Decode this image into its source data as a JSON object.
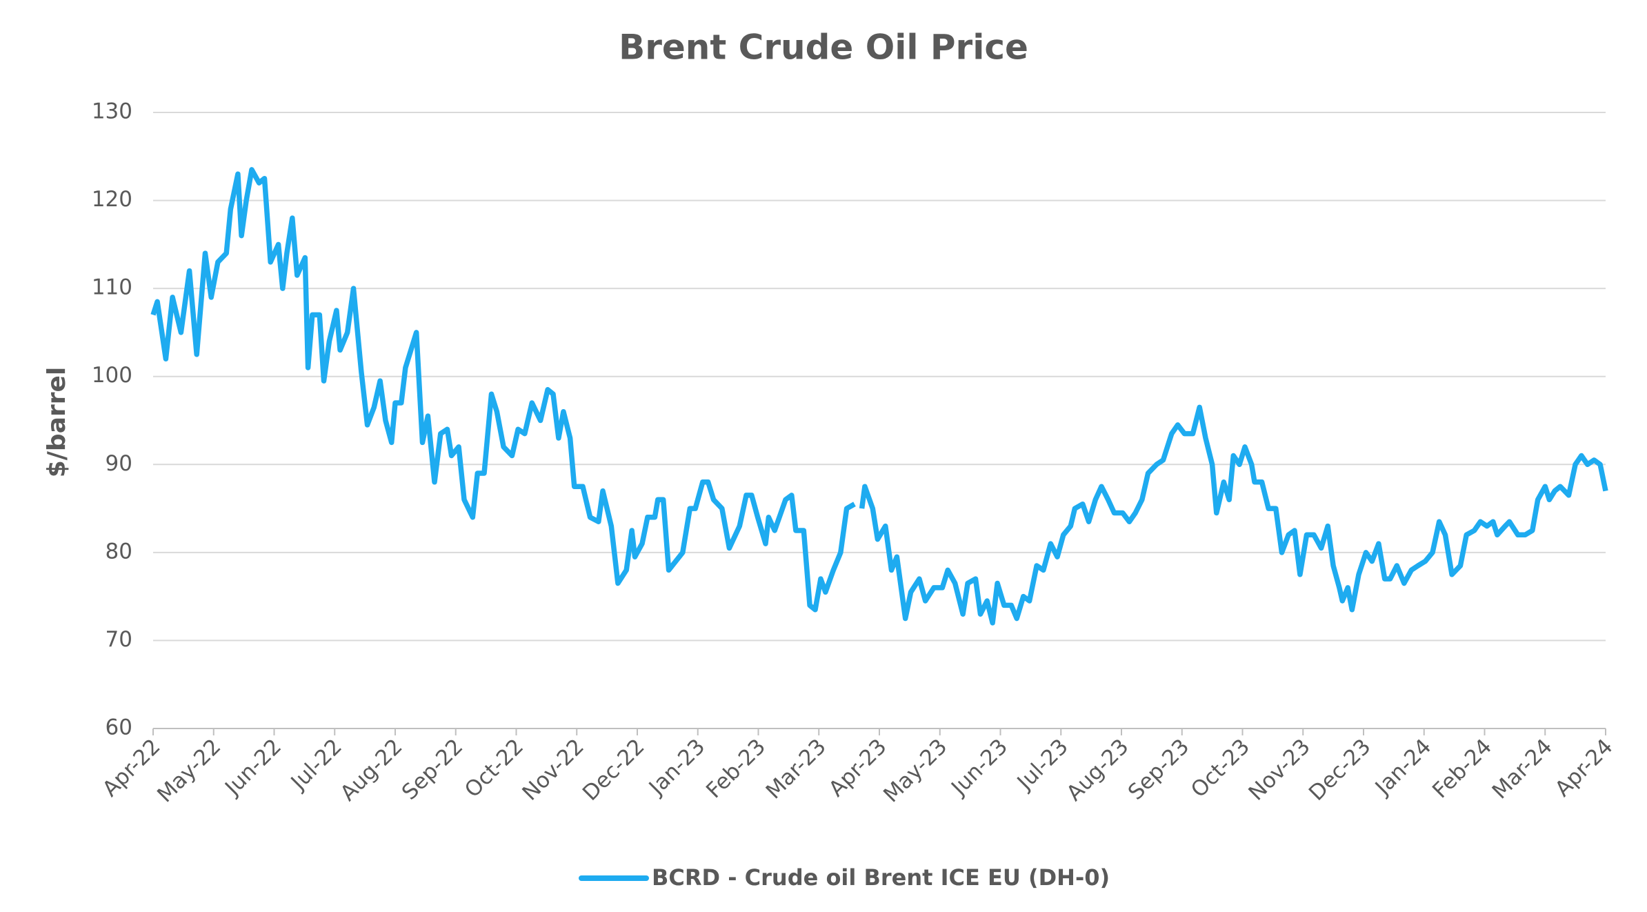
{
  "chart_data": {
    "type": "line",
    "title": "Brent Crude Oil Price",
    "ylabel": "$/barrel",
    "xlim": [
      0,
      24
    ],
    "xticks": [
      {
        "value": 0,
        "label": "Apr-22"
      },
      {
        "value": 1,
        "label": "May-22"
      },
      {
        "value": 2,
        "label": "Jun-22"
      },
      {
        "value": 3,
        "label": "Jul-22"
      },
      {
        "value": 4,
        "label": "Aug-22"
      },
      {
        "value": 5,
        "label": "Sep-22"
      },
      {
        "value": 6,
        "label": "Oct-22"
      },
      {
        "value": 7,
        "label": "Nov-22"
      },
      {
        "value": 8,
        "label": "Dec-22"
      },
      {
        "value": 9,
        "label": "Jan-23"
      },
      {
        "value": 10,
        "label": "Feb-23"
      },
      {
        "value": 11,
        "label": "Mar-23"
      },
      {
        "value": 12,
        "label": "Apr-23"
      },
      {
        "value": 13,
        "label": "May-23"
      },
      {
        "value": 14,
        "label": "Jun-23"
      },
      {
        "value": 15,
        "label": "Jul-23"
      },
      {
        "value": 16,
        "label": "Aug-23"
      },
      {
        "value": 17,
        "label": "Sep-23"
      },
      {
        "value": 18,
        "label": "Oct-23"
      },
      {
        "value": 19,
        "label": "Nov-23"
      },
      {
        "value": 20,
        "label": "Dec-23"
      },
      {
        "value": 21,
        "label": "Jan-24"
      },
      {
        "value": 22,
        "label": "Feb-24"
      },
      {
        "value": 23,
        "label": "Mar-24"
      },
      {
        "value": 24,
        "label": "Apr-24"
      }
    ],
    "ylim": [
      60,
      130
    ],
    "yticks": [
      60,
      70,
      80,
      90,
      100,
      110,
      120,
      130
    ],
    "grid": true,
    "series": [
      {
        "name": "BCRD - Crude oil Brent ICE EU (DH-0)",
        "color": "#1eabf0",
        "x": [
          0,
          0.07,
          0.21,
          0.32,
          0.46,
          0.6,
          0.72,
          0.86,
          0.96,
          1.07,
          1.21,
          1.28,
          1.4,
          1.46,
          1.54,
          1.63,
          1.75,
          1.84,
          1.94,
          2.07,
          2.14,
          2.21,
          2.3,
          2.38,
          2.51,
          2.56,
          2.63,
          2.75,
          2.82,
          2.91,
          3.03,
          3.09,
          3.21,
          3.31,
          3.44,
          3.54,
          3.65,
          3.75,
          3.84,
          3.94,
          4.0,
          4.1,
          4.17,
          4.35,
          4.45,
          4.54,
          4.65,
          4.75,
          4.86,
          4.93,
          5.05,
          5.14,
          5.28,
          5.36,
          5.47,
          5.59,
          5.68,
          5.79,
          5.93,
          6.03,
          6.14,
          6.26,
          6.4,
          6.52,
          6.61,
          6.7,
          6.78,
          6.89,
          6.96,
          7.1,
          7.22,
          7.36,
          7.43,
          7.57,
          7.68,
          7.82,
          7.91,
          7.96,
          8.08,
          8.17,
          8.29,
          8.34,
          8.43,
          8.52,
          8.75,
          8.87,
          8.96,
          9.08,
          9.17,
          9.26,
          9.4,
          9.52,
          9.69,
          9.8,
          9.89,
          9.99,
          10.12,
          10.17,
          10.27,
          10.45,
          10.55,
          10.62,
          10.75,
          10.85,
          10.94,
          11.03,
          11.11,
          11.24,
          11.36,
          11.46,
          11.59,
          11.65,
          11.71,
          11.76,
          11.89,
          11.97,
          12.1,
          12.2,
          12.29,
          12.43,
          12.52,
          12.66,
          12.76,
          12.9,
          13.04,
          13.13,
          13.25,
          13.38,
          13.46,
          13.59,
          13.67,
          13.78,
          13.87,
          13.95,
          14.06,
          14.18,
          14.27,
          14.38,
          14.48,
          14.6,
          14.71,
          14.83,
          14.94,
          15.04,
          15.16,
          15.23,
          15.36,
          15.46,
          15.57,
          15.67,
          15.78,
          15.88,
          16.02,
          16.13,
          16.23,
          16.34,
          16.44,
          16.58,
          16.69,
          16.83,
          16.93,
          17.04,
          17.18,
          17.29,
          17.39,
          17.5,
          17.57,
          17.69,
          17.78,
          17.85,
          17.95,
          18.04,
          18.15,
          18.2,
          18.32,
          18.43,
          18.55,
          18.65,
          18.76,
          18.86,
          18.95,
          19.06,
          19.18,
          19.3,
          19.41,
          19.5,
          19.6,
          19.65,
          19.74,
          19.81,
          19.92,
          20.04,
          20.14,
          20.25,
          20.35,
          20.44,
          20.55,
          20.67,
          20.79,
          20.9,
          21.02,
          21.14,
          21.25,
          21.35,
          21.46,
          21.6,
          21.7,
          21.83,
          21.93,
          22.04,
          22.14,
          22.21,
          22.34,
          22.41,
          22.55,
          22.67,
          22.79,
          22.88,
          23.0,
          23.07,
          23.16,
          23.25,
          23.39,
          23.5,
          23.6,
          23.7,
          23.81,
          23.91,
          24.0
        ],
        "values": [
          107,
          108.5,
          102,
          109,
          105,
          112,
          102.5,
          114,
          109,
          113,
          114,
          119,
          123,
          116,
          120,
          123.5,
          122,
          122.5,
          113,
          115,
          110,
          114,
          118,
          111.5,
          113.5,
          101,
          107,
          107,
          99.5,
          104,
          107.5,
          103,
          105,
          110,
          100.5,
          94.5,
          96.5,
          99.5,
          95,
          92.5,
          97,
          97,
          101,
          105,
          92.5,
          95.5,
          88,
          93.5,
          94,
          91,
          92,
          86,
          84,
          89,
          89,
          98,
          96,
          92,
          91,
          94,
          93.5,
          97,
          95,
          98.5,
          98,
          93,
          96,
          93,
          87.5,
          87.5,
          84,
          83.5,
          87,
          83,
          76.5,
          78,
          82.5,
          79.5,
          81,
          84,
          84,
          86,
          86,
          78,
          80,
          85,
          85,
          88,
          88,
          86,
          85,
          80.5,
          83,
          86.5,
          86.5,
          84,
          81,
          84,
          82.5,
          86,
          86.5,
          82.5,
          82.5,
          74,
          73.5,
          77,
          75.5,
          78,
          80,
          85,
          85.5,
          null,
          85,
          87.5,
          85,
          81.5,
          83,
          78,
          79.5,
          72.5,
          75.5,
          77,
          74.5,
          76,
          76,
          78,
          76.5,
          73,
          76.5,
          77,
          73,
          74.5,
          72,
          76.5,
          74,
          74,
          72.5,
          75,
          74.5,
          78.5,
          78,
          81,
          79.5,
          82,
          83,
          85,
          85.5,
          83.5,
          86,
          87.5,
          86,
          84.5,
          84.5,
          83.5,
          84.5,
          86,
          89,
          90,
          90.5,
          93.5,
          94.5,
          93.5,
          93.5,
          96.5,
          93,
          90,
          84.5,
          88,
          86,
          91,
          90,
          92,
          90,
          88,
          88,
          85,
          85,
          80,
          82,
          82.5,
          77.5,
          82,
          82,
          80.5,
          83,
          78.5,
          76,
          74.5,
          76,
          73.5,
          77.5,
          80,
          79,
          81,
          77,
          77,
          78.5,
          76.5,
          78,
          78.5,
          79,
          80,
          83.5,
          82,
          77.5,
          78.5,
          82,
          82.5,
          83.5,
          83,
          83.5,
          82,
          83,
          83.5,
          82,
          82,
          82.5,
          86,
          87.5,
          86,
          87,
          87.5,
          86.5,
          90,
          91,
          90,
          90.5,
          90,
          87
        ]
      }
    ]
  }
}
